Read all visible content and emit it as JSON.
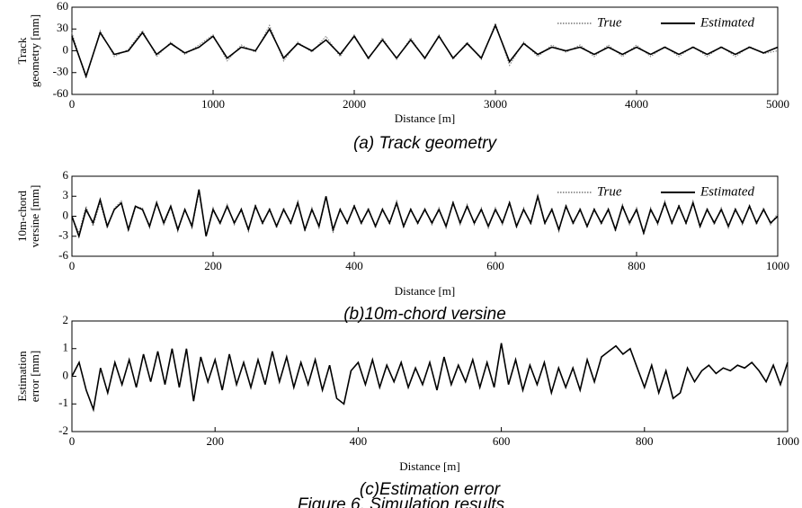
{
  "chart_data": [
    {
      "type": "line",
      "title": "(a) Track geometry",
      "x_label": "Distance [m]",
      "y_label_lines": [
        "Track",
        "geometry [mm]"
      ],
      "x": [
        0,
        100,
        200,
        300,
        400,
        500,
        600,
        700,
        800,
        900,
        1000,
        1100,
        1200,
        1300,
        1400,
        1500,
        1600,
        1700,
        1800,
        1900,
        2000,
        2100,
        2200,
        2300,
        2400,
        2500,
        2600,
        2700,
        2800,
        2900,
        3000,
        3100,
        3200,
        3300,
        3400,
        3500,
        3600,
        3700,
        3800,
        3900,
        4000,
        4100,
        4200,
        4300,
        4400,
        4500,
        4600,
        4700,
        4800,
        4900,
        5000
      ],
      "series": [
        {
          "name": "True",
          "color": "#777777",
          "style": "dotted",
          "values": [
            25,
            -38,
            28,
            -8,
            2,
            28,
            -8,
            12,
            -5,
            8,
            22,
            -14,
            8,
            -2,
            35,
            -14,
            12,
            -2,
            20,
            -8,
            22,
            -12,
            18,
            -12,
            18,
            -12,
            22,
            -12,
            12,
            -12,
            38,
            -20,
            12,
            -8,
            8,
            -2,
            8,
            -8,
            8,
            -8,
            8,
            -8,
            6,
            -8,
            6,
            -8,
            6,
            -8,
            6,
            -4,
            0
          ]
        },
        {
          "name": "Estimated",
          "color": "#000000",
          "style": "solid",
          "values": [
            20,
            -35,
            25,
            -5,
            0,
            25,
            -5,
            10,
            -3,
            5,
            20,
            -10,
            5,
            0,
            30,
            -10,
            10,
            0,
            15,
            -5,
            20,
            -10,
            15,
            -10,
            15,
            -10,
            20,
            -10,
            10,
            -10,
            35,
            -15,
            10,
            -5,
            5,
            0,
            5,
            -5,
            5,
            -5,
            5,
            -5,
            5,
            -5,
            5,
            -5,
            5,
            -5,
            5,
            -3,
            5
          ]
        }
      ],
      "xlim": [
        0,
        5000
      ],
      "ylim": [
        -60,
        60
      ],
      "xticks": [
        0,
        1000,
        2000,
        3000,
        4000,
        5000
      ],
      "yticks": [
        -60,
        -30,
        0,
        30,
        60
      ],
      "legend": "upper right"
    },
    {
      "type": "line",
      "title": "(b)10m-chord versine",
      "x_label": "Distance [m]",
      "y_label_lines": [
        "10m-chord",
        "versine [mm]"
      ],
      "x": [
        0,
        10,
        20,
        30,
        40,
        50,
        60,
        70,
        80,
        90,
        100,
        110,
        120,
        130,
        140,
        150,
        160,
        170,
        180,
        190,
        200,
        210,
        220,
        230,
        240,
        250,
        260,
        270,
        280,
        290,
        300,
        310,
        320,
        330,
        340,
        350,
        360,
        370,
        380,
        390,
        400,
        410,
        420,
        430,
        440,
        450,
        460,
        470,
        480,
        490,
        500,
        510,
        520,
        530,
        540,
        550,
        560,
        570,
        580,
        590,
        600,
        610,
        620,
        630,
        640,
        650,
        660,
        670,
        680,
        690,
        700,
        710,
        720,
        730,
        740,
        750,
        760,
        770,
        780,
        790,
        800,
        810,
        820,
        830,
        840,
        850,
        860,
        870,
        880,
        890,
        900,
        910,
        920,
        930,
        940,
        950,
        960,
        970,
        980,
        990,
        1000
      ],
      "series": [
        {
          "name": "True",
          "color": "#777777",
          "style": "dotted",
          "values": [
            0,
            -2.5,
            1.5,
            -1.5,
            2,
            -1.8,
            1.2,
            2.3,
            -2.2,
            1.2,
            1.3,
            -1.8,
            2.2,
            -1.3,
            1.3,
            -2.3,
            1.2,
            -1.8,
            3.5,
            -2.8,
            1.3,
            -1.3,
            1.8,
            -1.3,
            1.3,
            -2.3,
            1.8,
            -1.3,
            1.3,
            -1.8,
            1.3,
            -1.3,
            2.3,
            -2.3,
            1.3,
            -1.8,
            2.8,
            -2.5,
            1.3,
            -1.3,
            1.8,
            -1.3,
            1.3,
            -1.8,
            1.3,
            -1.3,
            2.3,
            -1.8,
            1.3,
            -1.3,
            1.3,
            -1.3,
            1.3,
            -1.8,
            2.3,
            -1.3,
            1.8,
            -1.3,
            1.3,
            -1.8,
            1.3,
            -1.3,
            2.3,
            -1.8,
            1.3,
            -1.3,
            2.8,
            -1.3,
            1.3,
            -2.3,
            1.8,
            -1.3,
            1.3,
            -1.8,
            1.3,
            -1.3,
            1.3,
            -2.3,
            1.8,
            -1.3,
            1.3,
            -2.8,
            1.3,
            -1.3,
            2.3,
            -1.3,
            1.8,
            -1.3,
            2.3,
            -1.8,
            1.3,
            -1.3,
            1.3,
            -1.8,
            1.3,
            -1.3,
            1.8,
            -1.3,
            1.3,
            -1.3,
            0.5
          ]
        },
        {
          "name": "Estimated",
          "color": "#000000",
          "style": "solid",
          "values": [
            0,
            -3,
            1,
            -1,
            2.5,
            -1.5,
            1,
            2,
            -2,
            1.5,
            1,
            -1.5,
            2,
            -1,
            1.5,
            -2,
            1,
            -1.5,
            4,
            -3,
            1,
            -1,
            1.5,
            -1,
            1,
            -2,
            1.5,
            -1,
            1,
            -1.5,
            1,
            -1,
            2,
            -2,
            1,
            -1.5,
            3,
            -2,
            1,
            -1,
            1.5,
            -1,
            1,
            -1.5,
            1,
            -1,
            2,
            -1.5,
            1,
            -1,
            1,
            -1,
            1,
            -1.5,
            2,
            -1,
            1.5,
            -1,
            1,
            -1.5,
            1,
            -1,
            2,
            -1.5,
            1,
            -1,
            3,
            -1,
            1,
            -2,
            1.5,
            -1,
            1,
            -1.5,
            1,
            -1,
            1,
            -2,
            1.5,
            -1,
            1,
            -2.5,
            1,
            -1,
            2,
            -1,
            1.5,
            -1,
            2,
            -1.5,
            1,
            -1,
            1,
            -1.5,
            1,
            -1,
            1.5,
            -1,
            1,
            -1,
            0
          ]
        }
      ],
      "xlim": [
        0,
        1000
      ],
      "ylim": [
        -6,
        6
      ],
      "xticks": [
        0,
        200,
        400,
        600,
        800,
        1000
      ],
      "yticks": [
        -6,
        -3,
        0,
        3,
        6
      ],
      "legend": "upper right"
    },
    {
      "type": "line",
      "title": "(c)Estimation error",
      "x_label": "Distance [m]",
      "y_label_lines": [
        "Estimation",
        "error [mm]"
      ],
      "x": [
        0,
        10,
        20,
        30,
        40,
        50,
        60,
        70,
        80,
        90,
        100,
        110,
        120,
        130,
        140,
        150,
        160,
        170,
        180,
        190,
        200,
        210,
        220,
        230,
        240,
        250,
        260,
        270,
        280,
        290,
        300,
        310,
        320,
        330,
        340,
        350,
        360,
        370,
        380,
        390,
        400,
        410,
        420,
        430,
        440,
        450,
        460,
        470,
        480,
        490,
        500,
        510,
        520,
        530,
        540,
        550,
        560,
        570,
        580,
        590,
        600,
        610,
        620,
        630,
        640,
        650,
        660,
        670,
        680,
        690,
        700,
        710,
        720,
        730,
        740,
        750,
        760,
        770,
        780,
        790,
        800,
        810,
        820,
        830,
        840,
        850,
        860,
        870,
        880,
        890,
        900,
        910,
        920,
        930,
        940,
        950,
        960,
        970,
        980,
        990,
        1000
      ],
      "series": [
        {
          "color": "#000000",
          "style": "solid",
          "values": [
            0,
            0.5,
            -0.5,
            -1.2,
            0.3,
            -0.6,
            0.5,
            -0.3,
            0.6,
            -0.4,
            0.8,
            -0.2,
            0.9,
            -0.3,
            1.0,
            -0.4,
            1.0,
            -0.9,
            0.7,
            -0.2,
            0.6,
            -0.5,
            0.8,
            -0.3,
            0.5,
            -0.4,
            0.6,
            -0.3,
            0.9,
            -0.2,
            0.7,
            -0.4,
            0.5,
            -0.3,
            0.6,
            -0.5,
            0.4,
            -0.8,
            -1.0,
            0.2,
            0.5,
            -0.3,
            0.6,
            -0.4,
            0.4,
            -0.2,
            0.5,
            -0.4,
            0.3,
            -0.3,
            0.5,
            -0.5,
            0.7,
            -0.3,
            0.4,
            -0.2,
            0.6,
            -0.4,
            0.5,
            -0.4,
            1.2,
            -0.3,
            0.6,
            -0.5,
            0.4,
            -0.3,
            0.5,
            -0.6,
            0.3,
            -0.4,
            0.3,
            -0.5,
            0.6,
            -0.2,
            0.7,
            0.9,
            1.1,
            0.8,
            1.0,
            0.3,
            -0.4,
            0.4,
            -0.6,
            0.2,
            -0.8,
            -0.6,
            0.3,
            -0.2,
            0.2,
            0.4,
            0.1,
            0.3,
            0.2,
            0.4,
            0.3,
            0.5,
            0.2,
            -0.2,
            0.4,
            -0.3,
            0.5
          ]
        }
      ],
      "xlim": [
        0,
        1000
      ],
      "ylim": [
        -2,
        2
      ],
      "xticks": [
        0,
        200,
        400,
        600,
        800,
        1000
      ],
      "yticks": [
        -2,
        -1,
        0,
        1,
        2
      ]
    }
  ],
  "caption": "Figure 6. Simulation results"
}
